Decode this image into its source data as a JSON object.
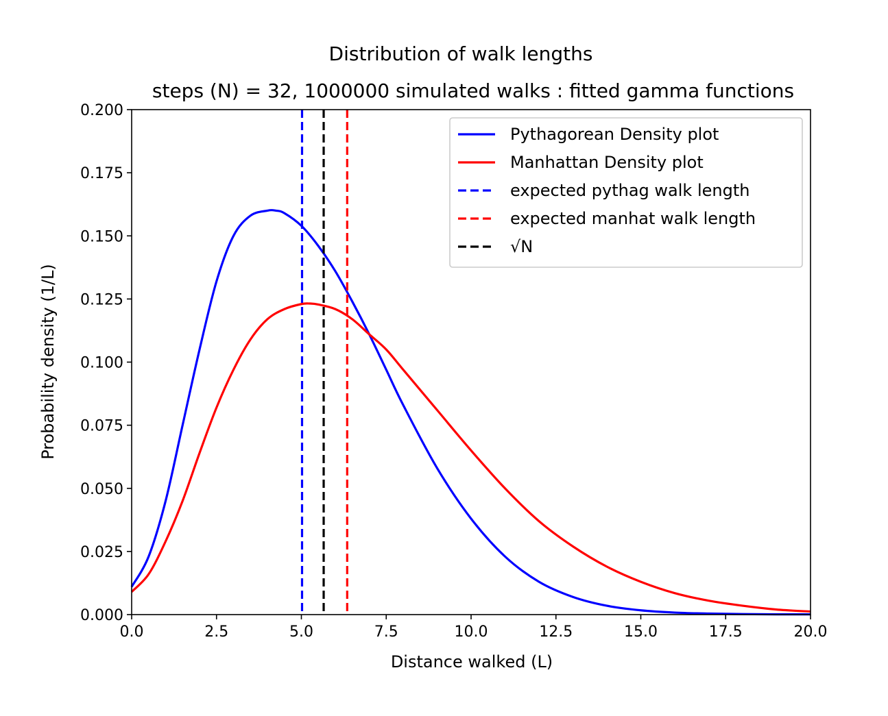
{
  "chart_data": {
    "type": "line",
    "title": "Distribution of walk lengths",
    "subtitle": "steps (N) = 32, 1000000 simulated walks : fitted gamma functions",
    "xlabel": "Distance walked (L)",
    "ylabel": "Probability density (1/L)",
    "xlim": [
      0.0,
      20.0
    ],
    "ylim": [
      0.0,
      0.2
    ],
    "x_ticks": [
      "0.0",
      "2.5",
      "5.0",
      "7.5",
      "10.0",
      "12.5",
      "15.0",
      "17.5",
      "20.0"
    ],
    "y_ticks": [
      "0.000",
      "0.025",
      "0.050",
      "0.075",
      "0.100",
      "0.125",
      "0.150",
      "0.175",
      "0.200"
    ],
    "grid": false,
    "legend_position": "top-right",
    "series": [
      {
        "name": "Pythagorean Density plot",
        "color": "#0000ff",
        "style": "solid",
        "x": [
          0,
          0.5,
          1,
          1.5,
          2,
          2.5,
          3,
          3.5,
          4,
          4.25,
          4.5,
          5,
          5.5,
          6,
          6.5,
          7,
          7.5,
          8,
          9,
          10,
          11,
          12,
          13,
          14,
          15,
          16,
          17,
          18,
          19,
          20
        ],
        "y": [
          0.011,
          0.023,
          0.045,
          0.075,
          0.105,
          0.132,
          0.15,
          0.158,
          0.16,
          0.16,
          0.159,
          0.154,
          0.146,
          0.136,
          0.124,
          0.111,
          0.097,
          0.083,
          0.058,
          0.038,
          0.023,
          0.013,
          0.007,
          0.0035,
          0.0017,
          0.0008,
          0.0004,
          0.0002,
          0.0001,
          0.0001
        ]
      },
      {
        "name": "Manhattan Density plot",
        "color": "#ff0000",
        "style": "solid",
        "x": [
          0,
          0.5,
          1,
          1.5,
          2,
          2.5,
          3,
          3.5,
          4,
          4.5,
          5,
          5.25,
          5.5,
          6,
          6.5,
          7,
          7.5,
          8,
          9,
          10,
          11,
          12,
          13,
          14,
          15,
          16,
          17,
          18,
          19,
          20
        ],
        "y": [
          0.009,
          0.016,
          0.029,
          0.045,
          0.064,
          0.082,
          0.097,
          0.109,
          0.117,
          0.121,
          0.123,
          0.1232,
          0.1228,
          0.121,
          0.117,
          0.111,
          0.105,
          0.097,
          0.081,
          0.065,
          0.05,
          0.037,
          0.027,
          0.019,
          0.013,
          0.0085,
          0.0055,
          0.0035,
          0.002,
          0.0012
        ]
      }
    ],
    "vlines": [
      {
        "name": "expected pythag walk length",
        "x": 5.02,
        "color": "#0000ff",
        "style": "dashed"
      },
      {
        "name": "expected manhat walk length",
        "x": 6.35,
        "color": "#ff0000",
        "style": "dashed"
      },
      {
        "name": "√N",
        "x": 5.657,
        "color": "#000000",
        "style": "dashed"
      }
    ]
  },
  "legend": [
    {
      "label": "Pythagorean Density plot",
      "color": "#0000ff",
      "style": "solid"
    },
    {
      "label": "Manhattan Density plot",
      "color": "#ff0000",
      "style": "solid"
    },
    {
      "label": "expected pythag walk length",
      "color": "#0000ff",
      "style": "dashed"
    },
    {
      "label": "expected manhat walk length",
      "color": "#ff0000",
      "style": "dashed"
    },
    {
      "label": "√N",
      "color": "#000000",
      "style": "dashed"
    }
  ]
}
